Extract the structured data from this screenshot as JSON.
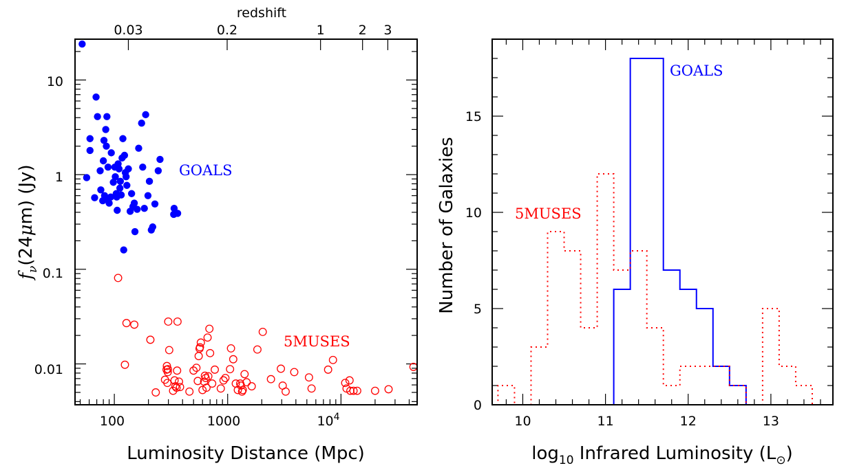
{
  "chart_data": [
    {
      "type": "scatter",
      "xlabel": "Luminosity Distance (Mpc)",
      "ylabel": "f_ν(24μm) (Jy)",
      "ylabel_parts": {
        "f": "f",
        "sub": "ν",
        "rest": "(24",
        "mu": "μ",
        "end": "m) (Jy)"
      },
      "top_axis_label": "redshift",
      "xscale": "log",
      "yscale": "log",
      "xlim": [
        45,
        47000
      ],
      "ylim": [
        0.0037,
        27
      ],
      "x_ticklabels": [
        "100",
        "1000",
        "10",
        "4"
      ],
      "y_ticklabels": [
        "10",
        "1",
        "0.1",
        "0.01"
      ],
      "top_ticklabels": [
        "0.03",
        "0.2",
        "1",
        "2",
        "3"
      ],
      "top_tick_dl_mpc": [
        133,
        990,
        6600,
        15500,
        25900
      ],
      "series": [
        {
          "name": "GOALS",
          "color": "#0000ff",
          "marker": "filled-circle",
          "points": [
            [
              52,
              24
            ],
            [
              57,
              0.93
            ],
            [
              61,
              2.4
            ],
            [
              61,
              1.8
            ],
            [
              67,
              0.57
            ],
            [
              69,
              6.6
            ],
            [
              71,
              4.1
            ],
            [
              75,
              1.1
            ],
            [
              76,
              0.69
            ],
            [
              79,
              0.53
            ],
            [
              81,
              2.3
            ],
            [
              80,
              1.4
            ],
            [
              82,
              0.6
            ],
            [
              84,
              3
            ],
            [
              86,
              4.1
            ],
            [
              85,
              2
            ],
            [
              88,
              1.2
            ],
            [
              87,
              0.55
            ],
            [
              90,
              0.5
            ],
            [
              93,
              0.58
            ],
            [
              94,
              1.7
            ],
            [
              98,
              0.83
            ],
            [
              101,
              1.2
            ],
            [
              102,
              0.95
            ],
            [
              104,
              0.63
            ],
            [
              105,
              0.58
            ],
            [
              106,
              0.42
            ],
            [
              108,
              1.3
            ],
            [
              110,
              1.15
            ],
            [
              112,
              0.72
            ],
            [
              113,
              0.85
            ],
            [
              115,
              0.61
            ],
            [
              117,
              1.5
            ],
            [
              119,
              2.4
            ],
            [
              121,
              0.16
            ],
            [
              123,
              1.6
            ],
            [
              125,
              1.05
            ],
            [
              127,
              0.95
            ],
            [
              129,
              0.77
            ],
            [
              133,
              1.15
            ],
            [
              138,
              0.41
            ],
            [
              142,
              0.63
            ],
            [
              146,
              0.46
            ],
            [
              150,
              0.5
            ],
            [
              152,
              0.25
            ],
            [
              159,
              0.43
            ],
            [
              164,
              1.9
            ],
            [
              174,
              3.5
            ],
            [
              178,
              1.2
            ],
            [
              184,
              0.44
            ],
            [
              189,
              4.3
            ],
            [
              198,
              0.6
            ],
            [
              204,
              0.85
            ],
            [
              212,
              0.26
            ],
            [
              218,
              0.28
            ],
            [
              228,
              0.49
            ],
            [
              244,
              1.1
            ],
            [
              253,
              1.45
            ],
            [
              334,
              0.38
            ],
            [
              337,
              0.44
            ],
            [
              362,
              0.39
            ]
          ]
        },
        {
          "name": "5MUSES",
          "color": "#ff0000",
          "marker": "open-circle",
          "points": [
            [
              108,
              0.081
            ],
            [
              124,
              0.0098
            ],
            [
              128,
              0.027
            ],
            [
              150,
              0.026
            ],
            [
              208,
              0.018
            ],
            [
              232,
              0.005
            ],
            [
              280,
              0.0068
            ],
            [
              289,
              0.0087
            ],
            [
              291,
              0.0095
            ],
            [
              294,
              0.0063
            ],
            [
              296,
              0.0082
            ],
            [
              297,
              0.0088
            ],
            [
              299,
              0.028
            ],
            [
              305,
              0.014
            ],
            [
              330,
              0.0052
            ],
            [
              340,
              0.0067
            ],
            [
              346,
              0.0058
            ],
            [
              354,
              0.0056
            ],
            [
              358,
              0.0085
            ],
            [
              361,
              0.028
            ],
            [
              372,
              0.0065
            ],
            [
              380,
              0.0057
            ],
            [
              460,
              0.0051
            ],
            [
              500,
              0.0085
            ],
            [
              530,
              0.0091
            ],
            [
              545,
              0.0066
            ],
            [
              555,
              0.0121
            ],
            [
              565,
              0.0145
            ],
            [
              570,
              0.015
            ],
            [
              580,
              0.0168
            ],
            [
              600,
              0.0053
            ],
            [
              620,
              0.0065
            ],
            [
              630,
              0.0075
            ],
            [
              640,
              0.0071
            ],
            [
              650,
              0.0056
            ],
            [
              665,
              0.019
            ],
            [
              675,
              0.0074
            ],
            [
              690,
              0.0235
            ],
            [
              700,
              0.013
            ],
            [
              730,
              0.0062
            ],
            [
              770,
              0.0087
            ],
            [
              870,
              0.0055
            ],
            [
              920,
              0.0067
            ],
            [
              955,
              0.0071
            ],
            [
              1050,
              0.0088
            ],
            [
              1070,
              0.0146
            ],
            [
              1120,
              0.0112
            ],
            [
              1180,
              0.0062
            ],
            [
              1230,
              0.0053
            ],
            [
              1290,
              0.0062
            ],
            [
              1310,
              0.0059
            ],
            [
              1340,
              0.0051
            ],
            [
              1360,
              0.0053
            ],
            [
              1410,
              0.0078
            ],
            [
              1470,
              0.0064
            ],
            [
              1630,
              0.0058
            ],
            [
              1830,
              0.0142
            ],
            [
              2040,
              0.0218
            ],
            [
              2410,
              0.0069
            ],
            [
              2950,
              0.0089
            ],
            [
              3060,
              0.0059
            ],
            [
              3250,
              0.0051
            ],
            [
              3870,
              0.0082
            ],
            [
              5220,
              0.0072
            ],
            [
              5500,
              0.0055
            ],
            [
              7700,
              0.0087
            ],
            [
              8500,
              0.011
            ],
            [
              10900,
              0.0063
            ],
            [
              11200,
              0.0055
            ],
            [
              11900,
              0.0067
            ],
            [
              12100,
              0.0052
            ],
            [
              12900,
              0.0052
            ],
            [
              13900,
              0.0052
            ],
            [
              20000,
              0.0052
            ],
            [
              26300,
              0.0054
            ],
            [
              43600,
              0.0093
            ]
          ]
        }
      ],
      "annotations": [
        {
          "text": "GOALS",
          "color": "#0000ff"
        },
        {
          "text": "5MUSES",
          "color": "#ff0000"
        }
      ]
    },
    {
      "type": "histogram",
      "xlabel": "log10 Infrared Luminosity (L⊙)",
      "xlabel_parts": {
        "log": "log",
        "sub": "10",
        "rest": " Infrared Luminosity (L",
        "sun": "⊙",
        "end": ")"
      },
      "ylabel": "Number of Galaxies",
      "xlim": [
        9.63,
        13.75
      ],
      "ylim": [
        0,
        19
      ],
      "x_ticklabels": [
        "10",
        "11",
        "12",
        "13"
      ],
      "y_ticklabels": [
        "0",
        "5",
        "10",
        "15"
      ],
      "bin_edges": [
        9.7,
        9.9,
        10.1,
        10.3,
        10.5,
        10.7,
        10.9,
        11.1,
        11.3,
        11.5,
        11.7,
        11.9,
        12.1,
        12.3,
        12.5,
        12.7,
        12.9,
        13.1,
        13.3,
        13.5,
        13.7
      ],
      "series": [
        {
          "name": "GOALS",
          "color": "#0000ff",
          "style": "solid",
          "counts": [
            0,
            0,
            0,
            0,
            0,
            0,
            0,
            6,
            18,
            18,
            7,
            6,
            5,
            2,
            1,
            0,
            0,
            0,
            0,
            0
          ]
        },
        {
          "name": "5MUSES",
          "color": "#ff0000",
          "style": "dotted",
          "counts": [
            1,
            0,
            3,
            9,
            8,
            4,
            12,
            7,
            8,
            4,
            1,
            2,
            2,
            2,
            1,
            0,
            5,
            2,
            1,
            0
          ]
        }
      ],
      "annotations": [
        {
          "text": "GOALS",
          "color": "#0000ff"
        },
        {
          "text": "5MUSES",
          "color": "#ff0000"
        }
      ]
    }
  ]
}
